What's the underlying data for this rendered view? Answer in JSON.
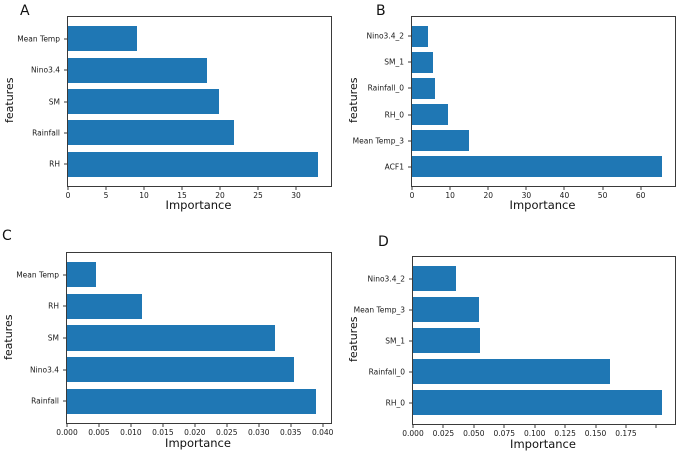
{
  "figure": {
    "background": "#ffffff",
    "bar_color": "#1f77b4",
    "spine_color": "#3a3a3a"
  },
  "chart_data": [
    {
      "panel_label": "A",
      "type": "bar",
      "orientation": "horizontal",
      "xlabel": "Importance",
      "ylabel": "features",
      "categories": [
        "Mean Temp",
        "Nino3.4",
        "SM",
        "Rainfall",
        "RH"
      ],
      "values": [
        9.1,
        18.3,
        19.8,
        21.9,
        32.9
      ],
      "xlim": [
        0,
        34.6
      ],
      "xticks": [
        0,
        5,
        10,
        15,
        20,
        25,
        30
      ],
      "xtick_labels": [
        "0",
        "5",
        "10",
        "15",
        "20",
        "25",
        "30"
      ],
      "bar_color": "#1f77b4",
      "grid": false,
      "legend": null
    },
    {
      "panel_label": "B",
      "type": "bar",
      "orientation": "horizontal",
      "xlabel": "Importance",
      "ylabel": "features",
      "categories": [
        "Nino3.4_2",
        "SM_1",
        "Rainfall_0",
        "RH_0",
        "Mean Temp_3",
        "ACF1"
      ],
      "values": [
        4.3,
        5.5,
        6.1,
        9.5,
        15.0,
        65.5
      ],
      "xlim": [
        0,
        69
      ],
      "xticks": [
        0,
        10,
        20,
        30,
        40,
        50,
        60
      ],
      "xtick_labels": [
        "0",
        "10",
        "20",
        "30",
        "40",
        "50",
        "60"
      ],
      "bar_color": "#1f77b4",
      "grid": false,
      "legend": null
    },
    {
      "panel_label": "C",
      "type": "bar",
      "orientation": "horizontal",
      "xlabel": "Importance",
      "ylabel": "features",
      "categories": [
        "Mean Temp",
        "RH",
        "SM",
        "Nino3.4",
        "Rainfall"
      ],
      "values": [
        0.0045,
        0.0117,
        0.0325,
        0.0355,
        0.039
      ],
      "xlim": [
        0,
        0.0413
      ],
      "xticks": [
        0,
        0.005,
        0.01,
        0.015,
        0.02,
        0.025,
        0.03,
        0.035,
        0.04
      ],
      "xtick_labels": [
        "0.000",
        "0.005",
        "0.010",
        "0.015",
        "0.020",
        "0.025",
        "0.030",
        "0.035",
        "0.040"
      ],
      "bar_color": "#1f77b4",
      "grid": false,
      "legend": null
    },
    {
      "panel_label": "D",
      "type": "bar",
      "orientation": "horizontal",
      "xlabel": "Importance",
      "ylabel": "features",
      "categories": [
        "Nino3.4_2",
        "Mean Temp_3",
        "SM_1",
        "Rainfall_0",
        "RH_0"
      ],
      "values": [
        0.035,
        0.054,
        0.055,
        0.162,
        0.205
      ],
      "xlim": [
        0,
        0.2153
      ],
      "xticks": [
        0,
        0.025,
        0.05,
        0.075,
        0.1,
        0.125,
        0.15,
        0.175,
        0.2
      ],
      "xtick_labels": [
        "0.000",
        "0.025",
        "0.050",
        "0.075",
        "0.100",
        "0.125",
        "0.150",
        "0.175",
        ""
      ],
      "bar_color": "#1f77b4",
      "grid": false,
      "legend": null
    }
  ]
}
